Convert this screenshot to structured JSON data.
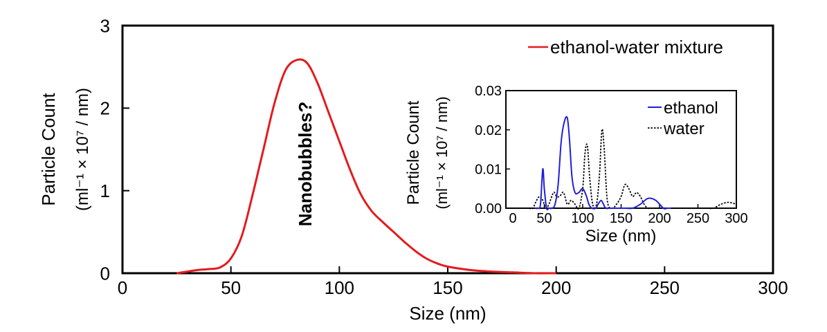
{
  "chart_data": [
    {
      "type": "line",
      "xlabel": "Size (nm)",
      "ylabel_line1": "Particle Count",
      "ylabel_line2": "(ml⁻¹ × 10⁷ / nm)",
      "xlim": [
        0,
        300
      ],
      "ylim": [
        0,
        3
      ],
      "x_ticks": [
        0,
        50,
        100,
        150,
        200,
        250,
        300
      ],
      "y_ticks": [
        0,
        1,
        2,
        3
      ],
      "x_tick_labels": [
        "0",
        "50",
        "100",
        "150",
        "200",
        "250",
        "300"
      ],
      "y_tick_labels": [
        "0",
        "1",
        "2",
        "3"
      ],
      "grid": false,
      "legend_position": "top-right",
      "annotation": "Nanobubbles?",
      "series": [
        {
          "name": "ethanol-water mixture",
          "color": "#e31a1c",
          "x": [
            25,
            30,
            35,
            40,
            45,
            50,
            55,
            60,
            65,
            70,
            75,
            80,
            85,
            90,
            95,
            100,
            105,
            110,
            115,
            120,
            125,
            130,
            135,
            140,
            145,
            150,
            160,
            170,
            180,
            190,
            200
          ],
          "y": [
            0.0,
            0.02,
            0.04,
            0.05,
            0.07,
            0.18,
            0.45,
            0.95,
            1.5,
            2.05,
            2.45,
            2.58,
            2.55,
            2.3,
            1.95,
            1.6,
            1.25,
            0.95,
            0.75,
            0.62,
            0.5,
            0.38,
            0.27,
            0.18,
            0.12,
            0.08,
            0.04,
            0.02,
            0.01,
            0.0,
            0.0
          ]
        }
      ]
    },
    {
      "type": "line",
      "xlabel": "Size (nm)",
      "ylabel_line1": "Particle Count",
      "ylabel_line2": "(ml⁻¹ × 10⁷ / nm)",
      "xlim": [
        0,
        300
      ],
      "ylim": [
        0,
        0.03
      ],
      "x_ticks": [
        0,
        50,
        100,
        150,
        200,
        250,
        300
      ],
      "y_ticks": [
        0,
        0.01,
        0.02,
        0.03
      ],
      "x_tick_labels": [
        "0",
        "50",
        "100",
        "150",
        "200",
        "250",
        "300"
      ],
      "y_tick_labels": [
        "0.00",
        "0.01",
        "0.02",
        "0.03"
      ],
      "grid": false,
      "legend_position": "top-right",
      "series": [
        {
          "name": "ethanol",
          "color": "#1f1fd6",
          "style": "solid",
          "x": [
            38,
            42,
            45,
            48,
            50,
            53,
            56,
            60,
            64,
            68,
            72,
            76,
            80,
            83,
            86,
            90,
            95,
            100,
            105,
            108,
            112,
            117,
            120,
            124,
            127,
            130,
            135,
            145,
            150,
            155,
            165,
            175,
            185,
            195,
            205,
            210,
            215
          ],
          "y": [
            0.0,
            0.0,
            0.001,
            0.01,
            0.005,
            0.0,
            0.0,
            0.0,
            0.001,
            0.006,
            0.017,
            0.022,
            0.023,
            0.017,
            0.008,
            0.004,
            0.004,
            0.005,
            0.003,
            0.001,
            0.0,
            0.0,
            0.001,
            0.002,
            0.001,
            0.0,
            0.0,
            0.0,
            0.0,
            0.0,
            0.0,
            0.001,
            0.0025,
            0.002,
            0.0,
            0.0,
            0.0
          ]
        },
        {
          "name": "water",
          "color": "#000000",
          "style": "dotted",
          "x": [
            30,
            35,
            40,
            44,
            48,
            52,
            56,
            62,
            66,
            70,
            75,
            80,
            85,
            90,
            95,
            100,
            103,
            106,
            109,
            113,
            118,
            122,
            125,
            128,
            132,
            138,
            144,
            150,
            155,
            160,
            165,
            170,
            175,
            180,
            185,
            190,
            200,
            210,
            220,
            240,
            260,
            270,
            280,
            290,
            300
          ],
          "y": [
            0.0,
            0.0,
            0.002,
            0.003,
            0.002,
            0.0,
            0.001,
            0.004,
            0.003,
            0.003,
            0.004,
            0.001,
            0.002,
            0.001,
            0.0,
            0.005,
            0.014,
            0.016,
            0.008,
            0.001,
            0.001,
            0.009,
            0.02,
            0.015,
            0.002,
            0.0,
            0.001,
            0.003,
            0.006,
            0.005,
            0.003,
            0.004,
            0.003,
            0.001,
            0.0,
            0.0,
            0.0,
            0.0,
            0.0,
            0.0,
            0.0,
            0.0,
            0.001,
            0.0015,
            0.001
          ]
        }
      ]
    }
  ]
}
